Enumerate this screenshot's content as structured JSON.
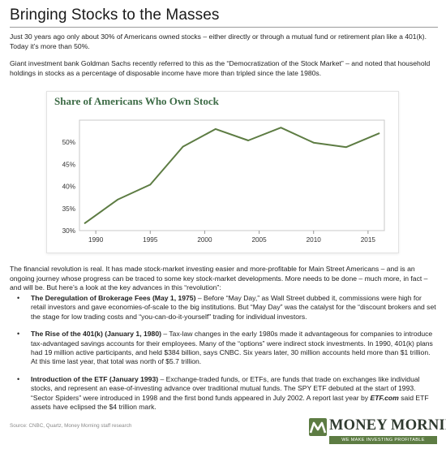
{
  "header": {
    "title": "Bringing Stocks to the Masses"
  },
  "intro": {
    "p1": "Just 30 years ago only about 30% of Americans owned stocks – either directly or through a mutual fund or retirement plan like a 401(k). Today it’s more than 50%.",
    "p2": "Giant investment bank Goldman Sachs recently referred to this as the “Democratization of the Stock Market” – and noted that household holdings in stocks as a percentage of disposable income have more than tripled since the late 1980s."
  },
  "chart_data": {
    "type": "line",
    "title": "Share of Americans Who Own Stock",
    "xlabel": "",
    "ylabel": "",
    "x": [
      1989,
      1992,
      1995,
      1998,
      2001,
      2004,
      2007,
      2010,
      2013,
      2016
    ],
    "series": [
      {
        "values": [
          31.7,
          37.0,
          40.4,
          49.0,
          53.0,
          50.4,
          53.3,
          49.9,
          48.9,
          52.0
        ]
      }
    ],
    "xlim": [
      1988.5,
      2016.5
    ],
    "ylim": [
      30,
      55
    ],
    "xticks": [
      "1990",
      "1995",
      "2000",
      "2005",
      "2010",
      "2015"
    ],
    "xtick_values": [
      1990,
      1995,
      2000,
      2005,
      2010,
      2015
    ],
    "yticks": [
      "30%",
      "35%",
      "40%",
      "45%",
      "50%"
    ],
    "ytick_values": [
      30,
      35,
      40,
      45,
      50
    ],
    "grid": false,
    "line_color": "#5d7c43",
    "title_color": "#3d6b46"
  },
  "body": {
    "p3": "The financial revolution is real. It has made stock-market investing easier and more-profitable for Main Street Americans – and is an ongoing journey whose progress can be traced to some key stock-market developments. More needs to be done – much more, in fact – and will be. But here’s a look at the key advances in this “revolution”:"
  },
  "bullets": [
    {
      "heading": "The Deregulation of Brokerage Fees (May 1, 1975)",
      "text": " – Before “May Day,” as Wall Street dubbed it, commissions were high for retail investors and gave economies-of-scale to the big institutions. But “May Day” was the catalyst for the “discount brokers and set the stage for low trading costs and “you-can-do-it-yourself” trading for individual investors."
    },
    {
      "heading": "The Rise of the 401(k) (January 1, 1980)",
      "text": " – Tax-law changes in the early 1980s made it advantageous for companies to introduce tax-advantaged savings accounts for their employees. Many of the “options” were indirect stock investments. In 1990, 401(k) plans had 19 million active participants, and held $384 billion, says CNBC. Six years later, 30 million accounts held more than $1 trillion. At this time last year, that total was north of $5.7 trillion."
    },
    {
      "heading": "Introduction of the ETF (January 1993)",
      "text_before": " – Exchange-traded funds, or ETFs, are funds that trade on exchanges like individual stocks, and represent an ease-of-investing advance over traditional mutual funds. The SPY ETF debuted at the start of 1993. “Sector Spiders” were introduced in 1998 and the first bond funds appeared in July 2002. A report last year by ",
      "emph": "ETF.com",
      "text_after": " said ETF assets have eclipsed the $4 trillion mark."
    }
  ],
  "footer": {
    "source": "Source: CNBC, Quartz, Money Morning staff research",
    "logo_name": "MONEY MORNING",
    "logo_tagline": "WE MAKE INVESTING PROFITABLE",
    "logo_color": "#5d7c43"
  }
}
